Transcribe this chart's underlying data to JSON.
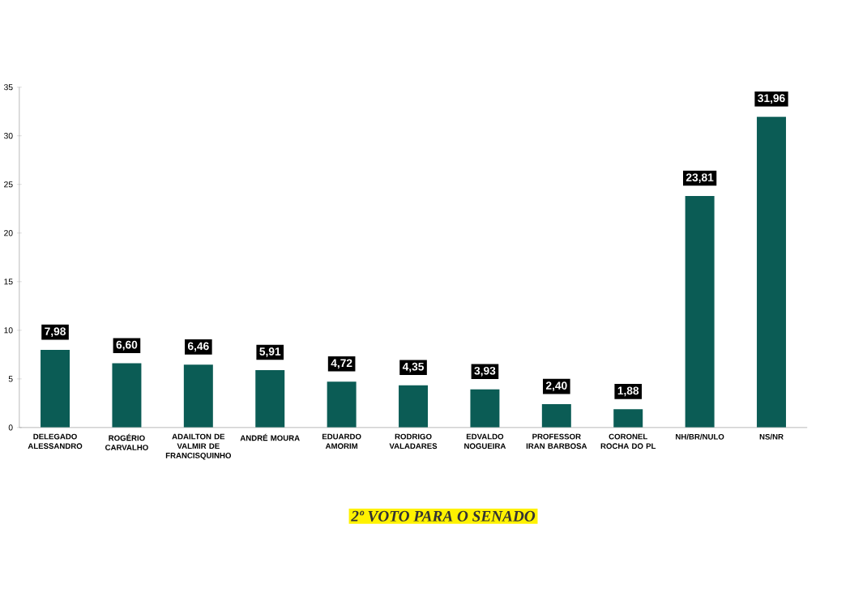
{
  "chart_data": {
    "type": "bar",
    "title": "2º VOTO PARA O SENADO",
    "categories": [
      "DELEGADO ALESSANDRO",
      "ROGÉRIO CARVALHO",
      "ADAILTON DE VALMIR DE FRANCISQUINHO",
      "ANDRÉ MOURA",
      "EDUARDO AMORIM",
      "RODRIGO VALADARES",
      "EDVALDO NOGUEIRA",
      "PROFESSOR IRAN BARBOSA",
      "CORONEL ROCHA DO PL",
      "NH/BR/NULO",
      "NS/NR"
    ],
    "values": [
      7.98,
      6.6,
      6.46,
      5.91,
      4.72,
      4.35,
      3.93,
      2.4,
      1.88,
      23.81,
      31.96
    ],
    "value_labels": [
      "7,98",
      "6,60",
      "6,46",
      "5,91",
      "4,72",
      "4,35",
      "3,93",
      "2,40",
      "1,88",
      "23,81",
      "31,96"
    ],
    "color": "#0b5c55",
    "ylim": [
      0,
      35
    ],
    "yticks": [
      0,
      5,
      10,
      15,
      20,
      25,
      30,
      35
    ],
    "grid": false
  }
}
